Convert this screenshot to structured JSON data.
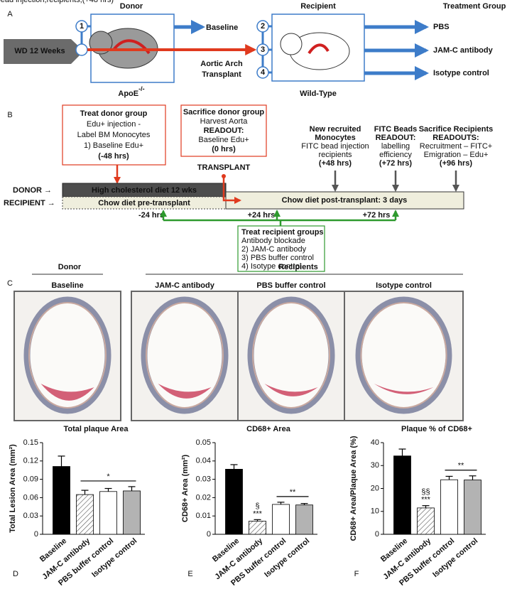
{
  "panel_a": {
    "letter": "A",
    "donor": "Donor",
    "recipient": "Recipient",
    "treatment_group": "Treatment Group",
    "wd": "WD 12 Weeks",
    "baseline": "Baseline",
    "transplant": [
      "Aortic Arch",
      "Transplant"
    ],
    "donor_strain": "ApoE",
    "donor_strain_sup": "-/-",
    "recipient_strain": "Wild-Type",
    "steps": [
      "1",
      "2",
      "3",
      "4"
    ],
    "groups": [
      "PBS",
      "JAM-C antibody",
      "Isotype control"
    ]
  },
  "panel_b": {
    "letter": "B",
    "donor_label": "DONOR →",
    "recipient_label": "RECIPIENT →",
    "hcd": "High cholesterol diet 12 wks",
    "chow_pre": "Chow diet pre-transplant",
    "chow_post": "Chow diet post-transplant: 3 days",
    "transplant": "TRANSPLANT",
    "times": [
      "-24 hrs",
      "+24 hrs",
      "+72 hrs"
    ],
    "treat_donor": [
      "Treat donor group",
      "Edu+ injection -",
      "Label BM Monocytes",
      "1) Baseline Edu+",
      "(-48 hrs)"
    ],
    "sacrifice_donor": [
      "Sacrifice donor group",
      "Harvest Aorta",
      "READOUT:",
      "Baseline Edu+",
      "(0 hrs)"
    ],
    "new_monocytes": [
      "New recruited",
      "Monocytes",
      "FITC bead injection",
      "recipients",
      "(+48 hrs)"
    ],
    "fitc": [
      "FITC Beads",
      "READOUT:",
      "labelling",
      "efficiency",
      "(+72 hrs)"
    ],
    "sacrifice_recip": [
      "Sacrifice Recipients",
      "READOUTS:",
      "Recruitment – FITC+",
      "Emigration – Edu+",
      "(+96 hrs)"
    ],
    "treat_recip": [
      "Treat recipient groups",
      "Antibody blockade",
      "2) JAM-C antibody",
      "3) PBS buffer control",
      "4) Isotype control"
    ]
  },
  "panel_c": {
    "letter": "C",
    "donor": "Donor",
    "recipients": "Recipients",
    "images": [
      "Baseline",
      "JAM-C antibody",
      "PBS buffer control",
      "Isotype control"
    ]
  },
  "chart_data": [
    {
      "type": "bar",
      "letter": "D",
      "title": "Total plaque Area",
      "y_label": "Total Lesion Area (mm²)",
      "categories": [
        "Baseline",
        "JAM-C antibody",
        "PBS buffer control",
        "Isotype control"
      ],
      "values": [
        0.111,
        0.065,
        0.07,
        0.071
      ],
      "errors": [
        0.017,
        0.007,
        0.005,
        0.007
      ],
      "colors": [
        "#000000",
        "#ffffff",
        "#ffffff",
        "#b3b3b3"
      ],
      "hatch": [
        false,
        true,
        false,
        false
      ],
      "ylim": [
        0,
        0.15
      ],
      "yticks": [
        0,
        0.03,
        0.06,
        0.09,
        0.12,
        0.15
      ],
      "bracket_annotation": "*"
    },
    {
      "type": "bar",
      "letter": "E",
      "title": "CD68+ Area",
      "y_label": "CD68+ Area (mm²)",
      "categories": [
        "Baseline",
        "JAM-C antibody",
        "PBS buffer control",
        "Isotype control"
      ],
      "values": [
        0.0355,
        0.0072,
        0.0163,
        0.016
      ],
      "errors": [
        0.0025,
        0.0008,
        0.0012,
        0.0008
      ],
      "colors": [
        "#000000",
        "#ffffff",
        "#ffffff",
        "#b3b3b3"
      ],
      "hatch": [
        false,
        true,
        false,
        false
      ],
      "ylim": [
        0,
        0.05
      ],
      "yticks": [
        0,
        0.01,
        0.02,
        0.03,
        0.04,
        0.05
      ],
      "bar_annotations": [
        null,
        [
          "§",
          "***"
        ],
        null,
        null
      ],
      "bracket_annotation": "**"
    },
    {
      "type": "bar",
      "letter": "F",
      "title": "Plaque % of CD68+",
      "y_label": "CD68+ Area/Plaque Area  (%)",
      "categories": [
        "Baseline",
        "JAM-C antibody",
        "PBS buffer control",
        "Isotype control"
      ],
      "values": [
        34.2,
        11.5,
        23.8,
        23.7
      ],
      "errors": [
        3,
        1,
        1.5,
        1.8
      ],
      "colors": [
        "#000000",
        "#ffffff",
        "#ffffff",
        "#b3b3b3"
      ],
      "hatch": [
        false,
        true,
        false,
        false
      ],
      "ylim": [
        0,
        40
      ],
      "yticks": [
        0,
        10,
        20,
        30,
        40
      ],
      "bar_annotations": [
        null,
        [
          "§§",
          "***"
        ],
        null,
        null
      ],
      "bracket_annotation": "**"
    }
  ]
}
